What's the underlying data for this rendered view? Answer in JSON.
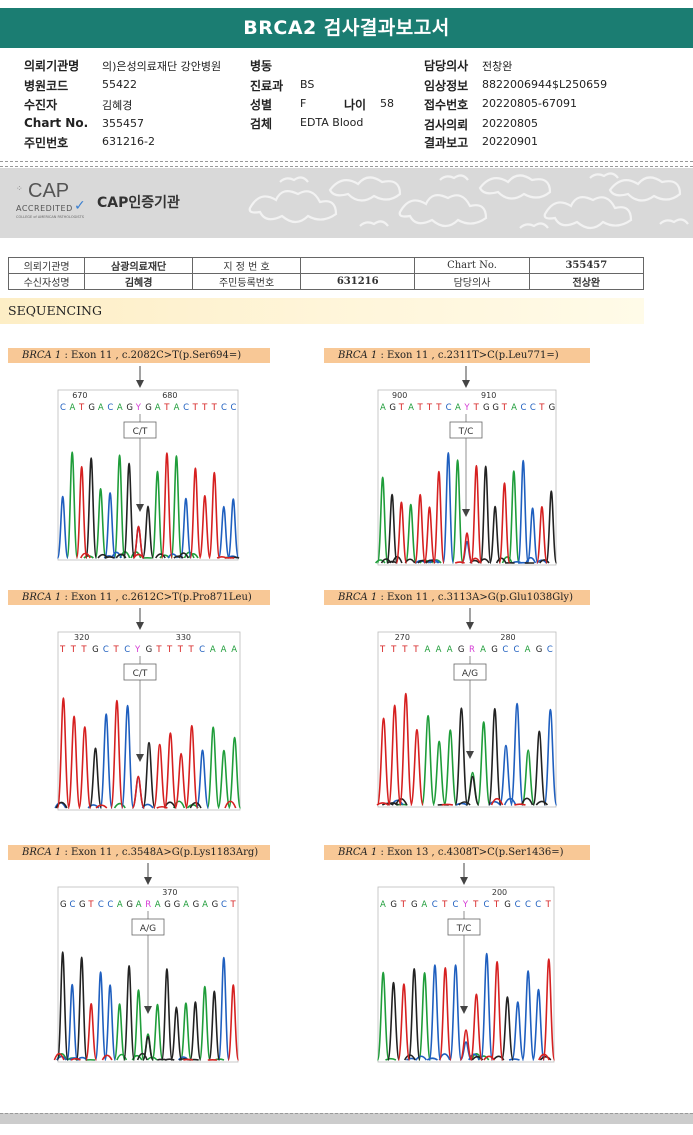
{
  "report_title": "BRCA2 검사결과보고서",
  "info": [
    {
      "label": "의뢰기관명",
      "value": "의)은성의료재단 강안병원"
    },
    {
      "label": "병원코드",
      "value": "55422"
    },
    {
      "label": "수진자",
      "value": "김혜경"
    },
    {
      "label": "Chart No.",
      "value": "355457"
    },
    {
      "label": "주민번호",
      "value": "631216-2"
    },
    {
      "label": "병동",
      "value": ""
    },
    {
      "label": "진료과",
      "value": "BS"
    },
    {
      "label": "성별",
      "value": "F"
    },
    {
      "label": "나이",
      "value": "58"
    },
    {
      "label": "검체",
      "value": "EDTA Blood"
    },
    {
      "label": "담당의사",
      "value": "전창완"
    },
    {
      "label": "임상정보",
      "value": "8822006944$L250659"
    },
    {
      "label": "접수번호",
      "value": "20220805-67091"
    },
    {
      "label": "검사의뢰",
      "value": "20220805"
    },
    {
      "label": "결과보고",
      "value": "20220901"
    }
  ],
  "cap": {
    "logo_text": "CAP",
    "accredited": "ACCREDITED",
    "college": "COLLEGE of AMERICAN PATHOLOGISTS",
    "title": "CAP인증기관"
  },
  "patient_table": {
    "r1": [
      "의뢰기관명",
      "삼광의료재단",
      "지 정 번 호",
      "",
      "Chart No.",
      "355457"
    ],
    "r2": [
      "수신자성명",
      "김혜경",
      "주민등록번호",
      "631216",
      "담당의사",
      "전상완"
    ]
  },
  "section_title": "SEQUENCING",
  "panels": [
    {
      "gene": "BRCA 1",
      "desc": " : Exon 11 , c.2082C>T(p.Ser694=)",
      "tick1": "670",
      "tick2": "680",
      "seq": "CATGACAGYGATACTTTCC",
      "call": "C/T",
      "seed": 3
    },
    {
      "gene": "BRCA 1",
      "desc": " : Exon 11 , c.2311T>C(p.Leu771=)",
      "tick1": "900",
      "tick2": "910",
      "seq": "AGTATTTCAYTGGTACCTG",
      "call": "T/C",
      "seed": 7
    },
    {
      "gene": "BRCA 1",
      "desc": " : Exon 11 , c.2612C>T(p.Pro871Leu)",
      "tick1": "320",
      "tick2": "330",
      "seq": "TTTGCTCYGTTTTCAAA",
      "call": "C/T",
      "seed": 11
    },
    {
      "gene": "BRCA 1",
      "desc": " : Exon 11 , c.3113A>G(p.Glu1038Gly)",
      "tick1": "270",
      "tick2": "280",
      "seq": "TTTTAAAGRAGCCAGC",
      "call": "A/G",
      "seed": 13
    },
    {
      "gene": "BRCA 1",
      "desc": " : Exon 11 , c.3548A>G(p.Lys1183Arg)",
      "tick1": "",
      "tick2": "370",
      "seq": "GCGTCCAGARAGGAGAGCT",
      "call": "A/G",
      "seed": 17
    },
    {
      "gene": "BRCA 1",
      "desc": " : Exon 13 , c.4308T>C(p.Ser1436=)",
      "tick1": "",
      "tick2": "200",
      "seq": "AGTGACTCYTCTGCCCT",
      "call": "T/C",
      "seed": 19
    }
  ],
  "colors": {
    "A": "#1f9d3a",
    "C": "#1f5fbf",
    "G": "#222222",
    "T": "#d62020",
    "teal": "#1b7d72",
    "label_bg": "#f8c896"
  }
}
